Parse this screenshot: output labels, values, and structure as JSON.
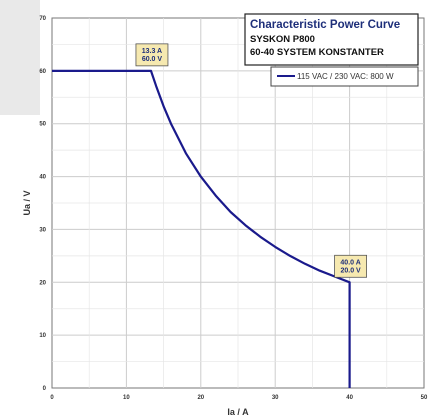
{
  "colors": {
    "series_line": "#1a1a8c",
    "grid": "#cccccc",
    "axis": "#555555",
    "annotation_fill": "#f6e9b0",
    "annotation_text": "#1e2f7a",
    "title_text": "#1e2f7a",
    "left_panel": "#e9e9e9"
  },
  "chart_data": {
    "type": "line",
    "title": "Characteristic Power Curve",
    "subtitle_lines": [
      "SYSKON P800",
      "60-40 SYSTEM KONSTANTER"
    ],
    "xlabel": "Ia / A",
    "ylabel": "Ua / V",
    "xlim": [
      0,
      50
    ],
    "ylim": [
      0,
      70
    ],
    "xticks": [
      0,
      10,
      20,
      30,
      40,
      50
    ],
    "yticks": [
      0,
      10,
      20,
      30,
      40,
      50,
      60,
      70
    ],
    "grid": true,
    "legend_position": "top-right",
    "series": [
      {
        "name": "115 VAC / 230 VAC: 800 W",
        "x": [
          0,
          13.3,
          14,
          15,
          16,
          18,
          20,
          22,
          24,
          26,
          28,
          30,
          32,
          34,
          36,
          38,
          40,
          40
        ],
        "y": [
          60,
          60,
          57.1,
          53.3,
          50,
          44.4,
          40,
          36.4,
          33.3,
          30.8,
          28.6,
          26.7,
          25,
          23.5,
          22.2,
          21.1,
          20,
          0
        ]
      }
    ],
    "annotations": [
      {
        "lines": [
          "13.3 A",
          "60.0 V"
        ],
        "x": 13.3,
        "y": 60
      },
      {
        "lines": [
          "40.0 A",
          "20.0 V"
        ],
        "x": 40,
        "y": 20
      }
    ]
  }
}
